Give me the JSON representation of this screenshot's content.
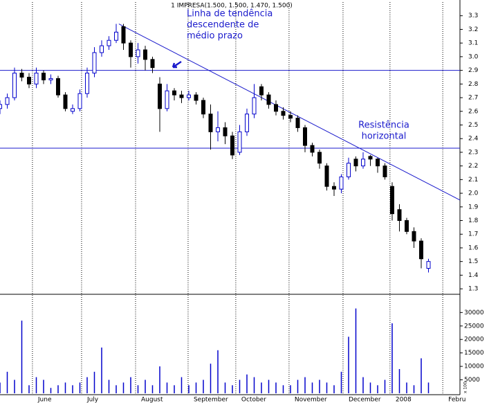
{
  "chart_data": {
    "type": "candlestick",
    "title": "1 IMPRESA(1.500, 1.500, 1.470, 1.500)",
    "x": [
      0,
      3,
      6,
      9,
      12,
      15,
      18,
      21,
      24,
      27,
      30,
      33,
      36,
      39,
      42,
      45,
      48,
      51,
      54,
      57,
      60,
      63,
      66,
      69,
      72,
      75,
      78,
      81,
      84,
      87,
      90,
      93,
      96,
      99,
      102,
      105,
      108,
      111,
      114,
      117,
      120,
      123,
      126,
      129,
      132,
      135,
      138,
      141,
      144,
      147,
      150,
      153,
      156,
      159,
      162,
      165,
      168,
      171,
      174,
      177
    ],
    "open": [
      2.62,
      2.65,
      2.7,
      2.88,
      2.85,
      2.8,
      2.88,
      2.83,
      2.84,
      2.72,
      2.6,
      2.62,
      2.73,
      2.88,
      3.03,
      3.08,
      3.12,
      3.22,
      3.1,
      3.0,
      3.05,
      2.98,
      2.8,
      2.62,
      2.75,
      2.72,
      2.7,
      2.72,
      2.68,
      2.58,
      2.45,
      2.48,
      2.42,
      2.3,
      2.45,
      2.58,
      2.78,
      2.72,
      2.65,
      2.6,
      2.57,
      2.55,
      2.48,
      2.35,
      2.3,
      2.2,
      2.05,
      2.03,
      2.12,
      2.25,
      2.2,
      2.27,
      2.25,
      2.2,
      2.05,
      1.88,
      1.8,
      1.72,
      1.65,
      1.45
    ],
    "high": [
      2.68,
      2.73,
      2.92,
      2.91,
      2.88,
      2.92,
      2.9,
      2.87,
      2.86,
      2.74,
      2.65,
      2.76,
      2.92,
      3.07,
      3.12,
      3.15,
      3.24,
      3.24,
      3.12,
      3.1,
      3.08,
      3.0,
      2.85,
      2.8,
      2.77,
      2.75,
      2.75,
      2.74,
      2.7,
      2.65,
      2.6,
      2.52,
      2.45,
      2.5,
      2.62,
      2.8,
      2.8,
      2.74,
      2.68,
      2.63,
      2.6,
      2.57,
      2.5,
      2.37,
      2.32,
      2.22,
      2.08,
      2.14,
      2.26,
      2.27,
      2.3,
      2.28,
      2.26,
      2.22,
      2.08,
      1.92,
      1.82,
      1.75,
      1.67,
      1.52
    ],
    "low": [
      2.58,
      2.62,
      2.68,
      2.82,
      2.77,
      2.77,
      2.8,
      2.8,
      2.7,
      2.6,
      2.58,
      2.6,
      2.7,
      2.85,
      3.0,
      3.05,
      3.1,
      3.05,
      2.92,
      2.95,
      2.9,
      2.88,
      2.45,
      2.6,
      2.68,
      2.66,
      2.68,
      2.65,
      2.55,
      2.32,
      2.38,
      2.36,
      2.25,
      2.28,
      2.42,
      2.55,
      2.68,
      2.62,
      2.57,
      2.54,
      2.52,
      2.45,
      2.3,
      2.27,
      2.18,
      2.02,
      1.98,
      2.0,
      2.1,
      2.16,
      2.18,
      2.2,
      2.15,
      2.1,
      1.8,
      1.72,
      1.7,
      1.6,
      1.45,
      1.42
    ],
    "close": [
      2.65,
      2.7,
      2.88,
      2.85,
      2.8,
      2.88,
      2.83,
      2.84,
      2.72,
      2.62,
      2.62,
      2.73,
      2.88,
      3.03,
      3.08,
      3.12,
      3.18,
      3.1,
      3.0,
      3.05,
      2.98,
      2.92,
      2.62,
      2.75,
      2.72,
      2.7,
      2.72,
      2.68,
      2.58,
      2.45,
      2.48,
      2.42,
      2.28,
      2.45,
      2.58,
      2.7,
      2.72,
      2.65,
      2.6,
      2.57,
      2.55,
      2.48,
      2.35,
      2.3,
      2.22,
      2.05,
      2.03,
      2.12,
      2.22,
      2.2,
      2.25,
      2.25,
      2.2,
      2.12,
      1.85,
      1.8,
      1.72,
      1.65,
      1.52,
      1.5
    ],
    "up_color": "#0000cc",
    "down_color": "#000000",
    "xlim": [
      0,
      190
    ],
    "xticks": [
      {
        "value": 13.4,
        "label": "June"
      },
      {
        "value": 33.7,
        "label": "July"
      },
      {
        "value": 56,
        "label": "August"
      },
      {
        "value": 77.7,
        "label": "September"
      },
      {
        "value": 97.4,
        "label": "October"
      },
      {
        "value": 119.4,
        "label": "November"
      },
      {
        "value": 141.7,
        "label": "December"
      },
      {
        "value": 161.1,
        "label": "2008"
      },
      {
        "value": 182.9,
        "label": "Febru"
      }
    ],
    "ylim": [
      1.26,
      3.4
    ],
    "yticks": [
      1.3,
      1.4,
      1.5,
      1.6,
      1.7,
      1.8,
      1.9,
      {
        "value": 2,
        "label": "2.0"
      },
      2.1,
      2.2,
      2.3,
      2.4,
      2.5,
      2.6,
      2.7,
      2.8,
      2.9,
      {
        "value": 3,
        "label": "3.0"
      },
      3.1,
      3.2,
      3.3
    ],
    "lines": [
      {
        "x": [
          0,
          190
        ],
        "y": [
          2.9,
          2.9
        ]
      },
      {
        "x": [
          0,
          190
        ],
        "y": [
          2.33,
          2.33
        ]
      },
      {
        "x": [
          49.1,
          190
        ],
        "y": [
          3.24,
          1.95
        ]
      }
    ],
    "annotations": [
      {
        "lines": [
          "Linha de tendência",
          "descendente de",
          "médio prazo"
        ]
      },
      {
        "lines": [
          "Resistência",
          "horizontal"
        ]
      }
    ],
    "volume": {
      "values": [
        4000,
        8000,
        5000,
        27000,
        3000,
        6000,
        5000,
        2000,
        3000,
        4000,
        3000,
        4000,
        6000,
        8000,
        17000,
        5000,
        3000,
        4000,
        6000,
        3000,
        5000,
        3000,
        10000,
        4000,
        3000,
        6000,
        3000,
        4000,
        5000,
        11000,
        16000,
        4000,
        3000,
        5000,
        7000,
        6000,
        4000,
        5000,
        4000,
        3000,
        3000,
        5000,
        6000,
        4000,
        5000,
        4000,
        3000,
        8000,
        21000,
        31500,
        6000,
        4000,
        3000,
        5000,
        26000,
        9000,
        4000,
        3000,
        13000,
        4000
      ],
      "color": "#0000cc",
      "ylim": [
        0,
        36000
      ],
      "yticks": [
        5000,
        10000,
        15000,
        20000,
        25000,
        30000
      ],
      "unit": "x 100"
    }
  }
}
